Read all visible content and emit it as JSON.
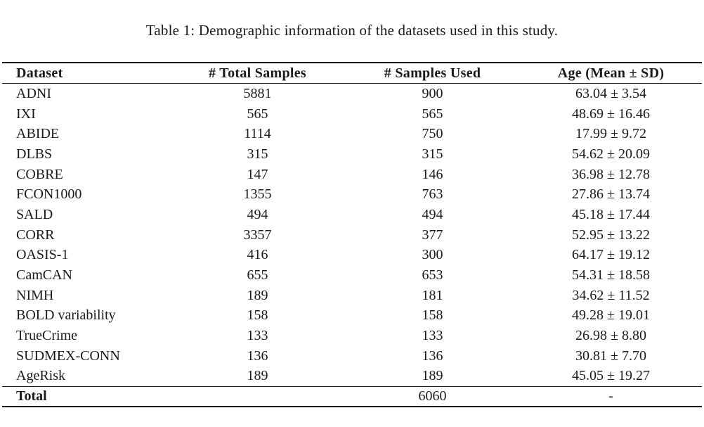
{
  "caption": "Table 1: Demographic information of the datasets used in this study.",
  "table": {
    "columns": [
      "Dataset",
      "# Total Samples",
      "# Samples Used",
      "Age (Mean ± SD)"
    ],
    "rows": [
      {
        "dataset": "ADNI",
        "total": "5881",
        "used": "900",
        "age": "63.04 ± 3.54"
      },
      {
        "dataset": "IXI",
        "total": "565",
        "used": "565",
        "age": "48.69 ± 16.46"
      },
      {
        "dataset": "ABIDE",
        "total": "1114",
        "used": "750",
        "age": "17.99 ± 9.72"
      },
      {
        "dataset": "DLBS",
        "total": "315",
        "used": "315",
        "age": "54.62 ± 20.09"
      },
      {
        "dataset": "COBRE",
        "total": "147",
        "used": "146",
        "age": "36.98 ± 12.78"
      },
      {
        "dataset": "FCON1000",
        "total": "1355",
        "used": "763",
        "age": "27.86 ± 13.74"
      },
      {
        "dataset": "SALD",
        "total": "494",
        "used": "494",
        "age": "45.18 ± 17.44"
      },
      {
        "dataset": "CORR",
        "total": "3357",
        "used": "377",
        "age": "52.95 ± 13.22"
      },
      {
        "dataset": "OASIS-1",
        "total": "416",
        "used": "300",
        "age": "64.17 ± 19.12"
      },
      {
        "dataset": "CamCAN",
        "total": "655",
        "used": "653",
        "age": "54.31 ± 18.58"
      },
      {
        "dataset": "NIMH",
        "total": "189",
        "used": "181",
        "age": "34.62 ± 11.52"
      },
      {
        "dataset": "BOLD variability",
        "total": "158",
        "used": "158",
        "age": "49.28 ± 19.01"
      },
      {
        "dataset": "TrueCrime",
        "total": "133",
        "used": "133",
        "age": "26.98 ± 8.80"
      },
      {
        "dataset": "SUDMEX-CONN",
        "total": "136",
        "used": "136",
        "age": "30.81 ± 7.70"
      },
      {
        "dataset": "AgeRisk",
        "total": "189",
        "used": "189",
        "age": "45.05 ± 19.27"
      }
    ],
    "footer": {
      "label": "Total",
      "total": "",
      "used": "6060",
      "age": "-"
    }
  },
  "colors": {
    "text": "#1a1a1a",
    "background": "#ffffff",
    "rule": "#1a1a1a"
  }
}
